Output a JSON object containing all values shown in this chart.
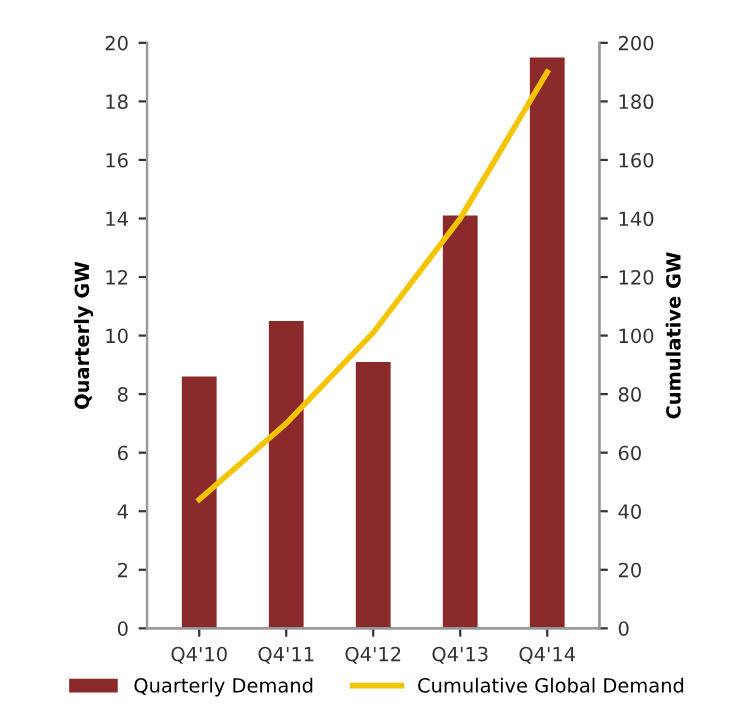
{
  "chart_data": {
    "type": "bar",
    "categories": [
      "Q4'10",
      "Q4'11",
      "Q4'12",
      "Q4'13",
      "Q4'14"
    ],
    "series": [
      {
        "name": "Quarterly Demand",
        "color": "#8b2a2a",
        "values": [
          8.6,
          10.5,
          9.1,
          14.1,
          19.5
        ]
      },
      {
        "name": "Cumulative Global Demand",
        "type": "line",
        "axis": "y2",
        "color": "#f5c400",
        "values": [
          44,
          70,
          101,
          140,
          190
        ]
      }
    ],
    "ylabel": "Quarterly GW",
    "y2label": "Cumulative GW",
    "ylim": [
      0,
      20
    ],
    "yticks": [
      0,
      2,
      4,
      6,
      8,
      10,
      12,
      14,
      16,
      18,
      20
    ],
    "y2lim": [
      0,
      200
    ],
    "y2ticks": [
      0,
      20,
      40,
      60,
      80,
      100,
      120,
      140,
      160,
      180,
      200
    ],
    "grid": false,
    "legend": "bottom"
  }
}
